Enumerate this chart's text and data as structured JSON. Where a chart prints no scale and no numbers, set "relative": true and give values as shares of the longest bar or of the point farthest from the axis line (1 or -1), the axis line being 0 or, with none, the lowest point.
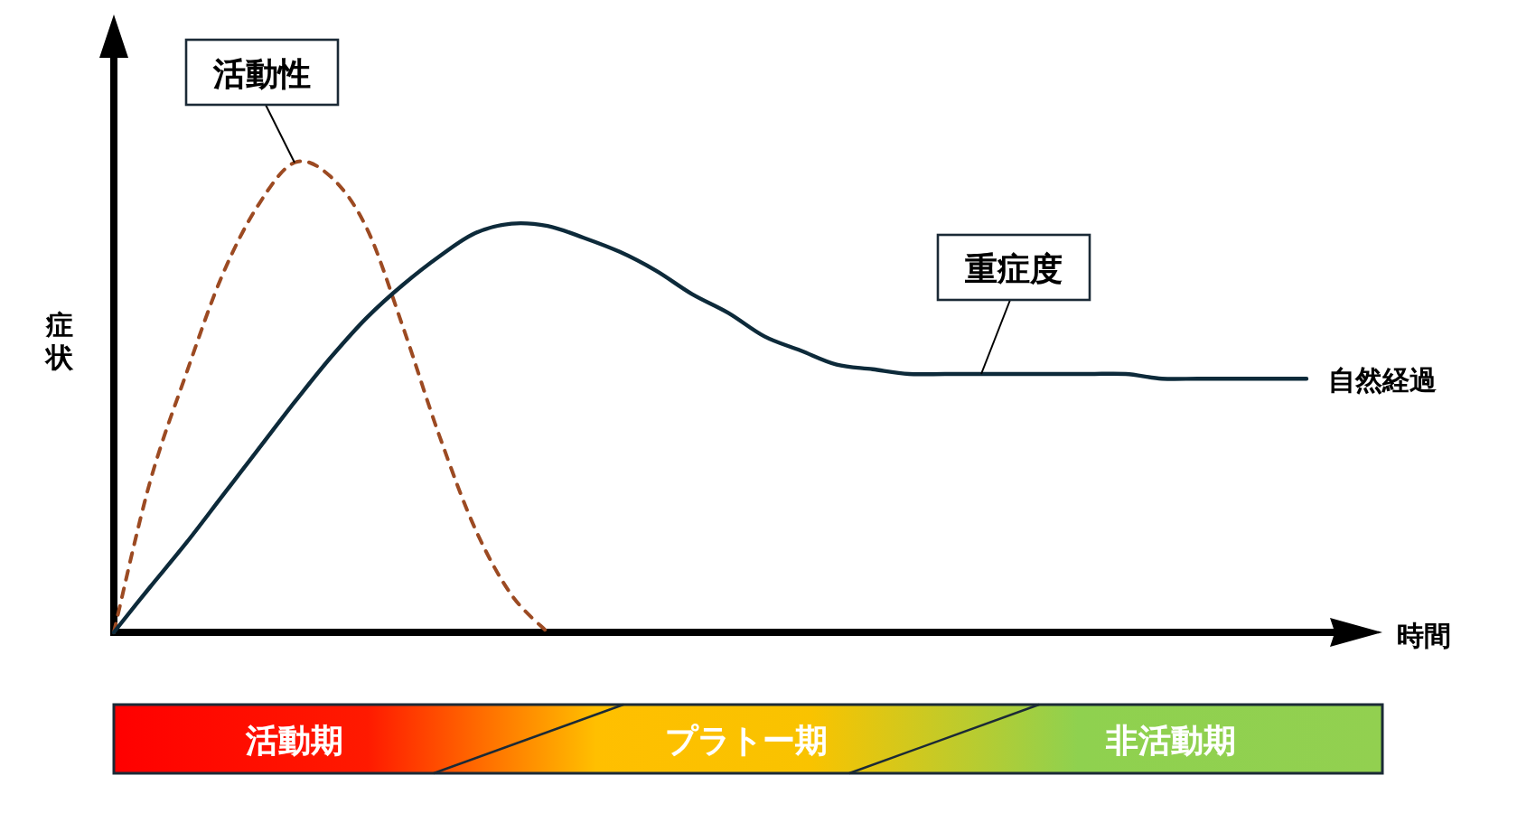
{
  "chart_data": {
    "type": "line",
    "relative": true,
    "xlabel": "時間",
    "ylabel": "症状",
    "legend": false,
    "grid": false,
    "marker": "none",
    "categories": [
      null,
      null,
      null,
      null,
      null,
      null,
      null,
      null,
      null,
      null,
      null,
      null,
      null,
      null,
      null,
      null,
      null,
      null,
      null,
      null,
      null,
      null,
      null,
      null,
      null,
      null,
      null,
      null,
      null,
      null,
      null,
      null,
      null,
      null
    ],
    "series": [
      {
        "name": "活動性",
        "color": "#9c4a22",
        "line_style": "dashed",
        "values": [
          0,
          0.32,
          0.55,
          0.76,
          0.91,
          1,
          0.97,
          0.86,
          0.65,
          0.42,
          0.22,
          0.08,
          0,
          null,
          null,
          null,
          null,
          null,
          null,
          null,
          null,
          null,
          null,
          null,
          null,
          null,
          null,
          null,
          null,
          null,
          null,
          null,
          null,
          null
        ]
      },
      {
        "name": "重症度",
        "color": "#0d2a3a",
        "line_style": "solid",
        "values": [
          0,
          0.096,
          0.19,
          0.29,
          0.39,
          0.49,
          0.585,
          0.67,
          0.74,
          0.8,
          0.85,
          0.87,
          0.865,
          0.84,
          0.81,
          0.77,
          0.72,
          0.68,
          0.63,
          0.6,
          0.57,
          0.56,
          0.55,
          0.55,
          0.55,
          0.55,
          0.55,
          0.55,
          0.55,
          0.54,
          0.54,
          0.54,
          0.54,
          0.54
        ]
      }
    ],
    "annotations": [
      "自然経過",
      "活動期",
      "プラトー期",
      "非活動期"
    ]
  }
}
